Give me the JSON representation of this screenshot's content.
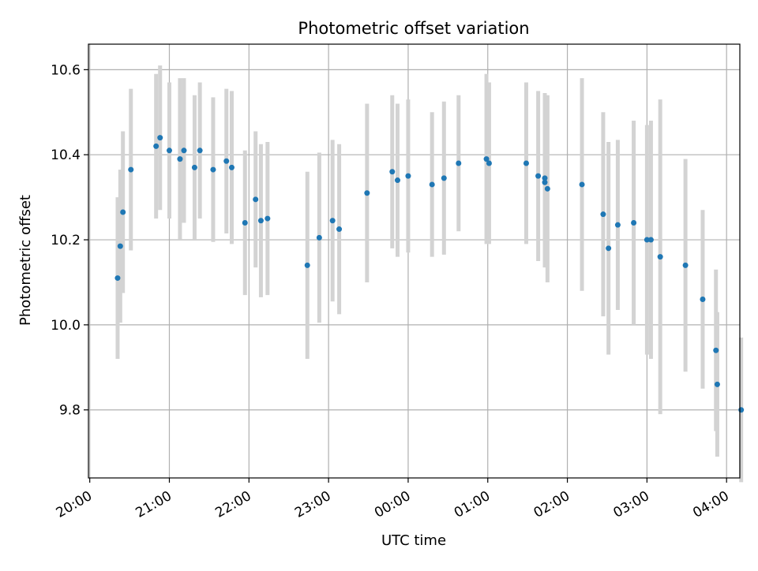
{
  "chart_data": {
    "type": "scatter",
    "title": "Photometric offset variation",
    "xlabel": "UTC time",
    "ylabel": "Photometric offset",
    "x_ticks": [
      "20:00",
      "21:00",
      "22:00",
      "23:00",
      "00:00",
      "01:00",
      "02:00",
      "03:00",
      "04:00"
    ],
    "y_ticks": [
      9.8,
      10.0,
      10.2,
      10.4,
      10.6
    ],
    "y_tick_labels": [
      "9.8",
      "10.0",
      "10.2",
      "10.4",
      "10.6"
    ],
    "xlim_minutes_after_20h": [
      -1,
      490
    ],
    "ylim": [
      9.64,
      10.66
    ],
    "grid": true,
    "marker_color": "#1f77b4",
    "errorbar_color": "#d3d3d3",
    "time_base": "20:00",
    "series": [
      {
        "x_minutes_after_20h": [
          21,
          23,
          25,
          31,
          50,
          53,
          60,
          68,
          71,
          79,
          83,
          93,
          103,
          107,
          117,
          125,
          129,
          134,
          164,
          173,
          183,
          188,
          209,
          228,
          232,
          240,
          258,
          267,
          278,
          299,
          301,
          329,
          338,
          343,
          343,
          345,
          371,
          387,
          391,
          398,
          410,
          420,
          423,
          430,
          449,
          462,
          472,
          473,
          491
        ],
        "x": [
          "20:21",
          "20:23",
          "20:25",
          "20:31",
          "20:50",
          "20:53",
          "21:00",
          "21:08",
          "21:11",
          "21:19",
          "21:23",
          "21:33",
          "21:43",
          "21:47",
          "21:57",
          "22:05",
          "22:09",
          "22:14",
          "22:44",
          "22:53",
          "23:03",
          "23:08",
          "23:29",
          "23:48",
          "23:52",
          "00:00",
          "00:18",
          "00:27",
          "00:38",
          "00:59",
          "01:01",
          "01:29",
          "01:38",
          "01:43",
          "01:43",
          "01:45",
          "02:11",
          "02:27",
          "02:31",
          "02:38",
          "02:50",
          "03:00",
          "03:03",
          "03:10",
          "03:29",
          "03:42",
          "03:52",
          "03:53",
          "04:11"
        ],
        "y": [
          10.11,
          10.185,
          10.265,
          10.365,
          10.42,
          10.44,
          10.41,
          10.39,
          10.41,
          10.37,
          10.41,
          10.365,
          10.385,
          10.37,
          10.24,
          10.295,
          10.245,
          10.25,
          10.14,
          10.205,
          10.245,
          10.225,
          10.31,
          10.36,
          10.34,
          10.35,
          10.33,
          10.345,
          10.38,
          10.39,
          10.38,
          10.38,
          10.35,
          10.335,
          10.345,
          10.32,
          10.33,
          10.26,
          10.18,
          10.235,
          10.24,
          10.2,
          10.2,
          10.16,
          10.14,
          10.06,
          9.94,
          9.86,
          9.8
        ],
        "yerr": [
          0.19,
          0.18,
          0.19,
          0.19,
          0.17,
          0.17,
          0.16,
          0.19,
          0.17,
          0.17,
          0.16,
          0.17,
          0.17,
          0.18,
          0.17,
          0.16,
          0.18,
          0.18,
          0.22,
          0.2,
          0.19,
          0.2,
          0.21,
          0.18,
          0.18,
          0.18,
          0.17,
          0.18,
          0.16,
          0.2,
          0.19,
          0.19,
          0.2,
          0.2,
          0.2,
          0.22,
          0.25,
          0.24,
          0.25,
          0.2,
          0.24,
          0.27,
          0.28,
          0.37,
          0.25,
          0.21,
          0.19,
          0.17,
          0.17
        ]
      }
    ]
  }
}
